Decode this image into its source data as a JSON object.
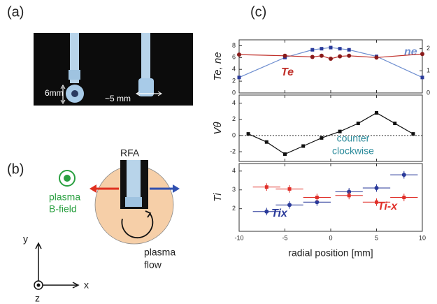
{
  "panel_labels": [
    "(a)",
    "(b)",
    "(c)"
  ],
  "panel_a": {
    "size_label": "6mm",
    "gap_label": "~5 mm"
  },
  "panel_b": {
    "probe": "RFA",
    "field": [
      "plasma",
      "B-field"
    ],
    "flow": [
      "plasma",
      "flow"
    ],
    "axes": [
      "y",
      "x",
      "z"
    ]
  },
  "chart_data": [
    {
      "type": "line",
      "ylabel": "Te, ne",
      "xlim": [
        -10,
        10
      ],
      "ylim": [
        0,
        9
      ],
      "yticks": [
        0,
        2,
        4,
        6,
        8
      ],
      "y2lim": [
        0,
        2.4
      ],
      "y2ticks": [
        0,
        1,
        2
      ],
      "x": [
        -10,
        -5,
        -2,
        -1,
        0,
        1,
        2,
        5,
        10
      ],
      "series": [
        {
          "name": "ne",
          "color": "#6f8fd0",
          "marker_color": "#2a3a9a",
          "marker": "square",
          "axis": "y2",
          "values": [
            0.7,
            1.6,
            1.95,
            2.0,
            2.05,
            2.0,
            1.95,
            1.65,
            0.7
          ]
        },
        {
          "name": "Te",
          "color": "#c0302a",
          "marker_color": "#8a1a1a",
          "marker": "circle",
          "values": [
            6.5,
            6.3,
            6.1,
            6.3,
            5.8,
            6.2,
            6.3,
            6.0,
            6.6
          ]
        }
      ]
    },
    {
      "type": "line",
      "ylabel": "Vθ",
      "xlim": [
        -10,
        10
      ],
      "ylim": [
        -3.2,
        5
      ],
      "yticks": [
        -2,
        0,
        2,
        4
      ],
      "zero_line": true,
      "annotation": [
        "counter",
        "clockwise"
      ],
      "x": [
        -9,
        -7,
        -5,
        -3,
        -1,
        1,
        3,
        5,
        7,
        9
      ],
      "series": [
        {
          "color": "#111111",
          "marker_color": "#111111",
          "marker": "square",
          "values": [
            0.2,
            -0.8,
            -2.3,
            -1.3,
            -0.3,
            0.5,
            1.5,
            2.8,
            1.5,
            0.2
          ]
        }
      ]
    },
    {
      "type": "errorbar",
      "ylabel": "Ti",
      "xlabel": "radial position [mm]",
      "xlim": [
        -10,
        10
      ],
      "xticks": [
        -10,
        -5,
        0,
        5,
        10
      ],
      "ylim": [
        0.8,
        4.4
      ],
      "yticks": [
        2,
        3,
        4
      ],
      "x": [
        -7,
        -4.5,
        -1.5,
        2,
        5,
        8
      ],
      "series": [
        {
          "name": "Tix",
          "color": "#2a3a9a",
          "marker": "circle",
          "values": [
            1.85,
            2.2,
            2.35,
            2.9,
            3.1,
            3.8
          ],
          "yerr": [
            0.2,
            0.2,
            0.2,
            0.2,
            0.2,
            0.2
          ],
          "xerr": [
            1.5,
            1.5,
            1.5,
            1.5,
            1.5,
            1.5
          ]
        },
        {
          "name": "Ti-x",
          "color": "#e0302a",
          "marker": "square",
          "values": [
            3.15,
            3.05,
            2.6,
            2.7,
            2.35,
            2.6
          ],
          "yerr": [
            0.2,
            0.2,
            0.2,
            0.2,
            0.2,
            0.2
          ],
          "xerr": [
            1.5,
            1.5,
            1.5,
            1.5,
            1.5,
            1.5
          ]
        }
      ]
    }
  ]
}
